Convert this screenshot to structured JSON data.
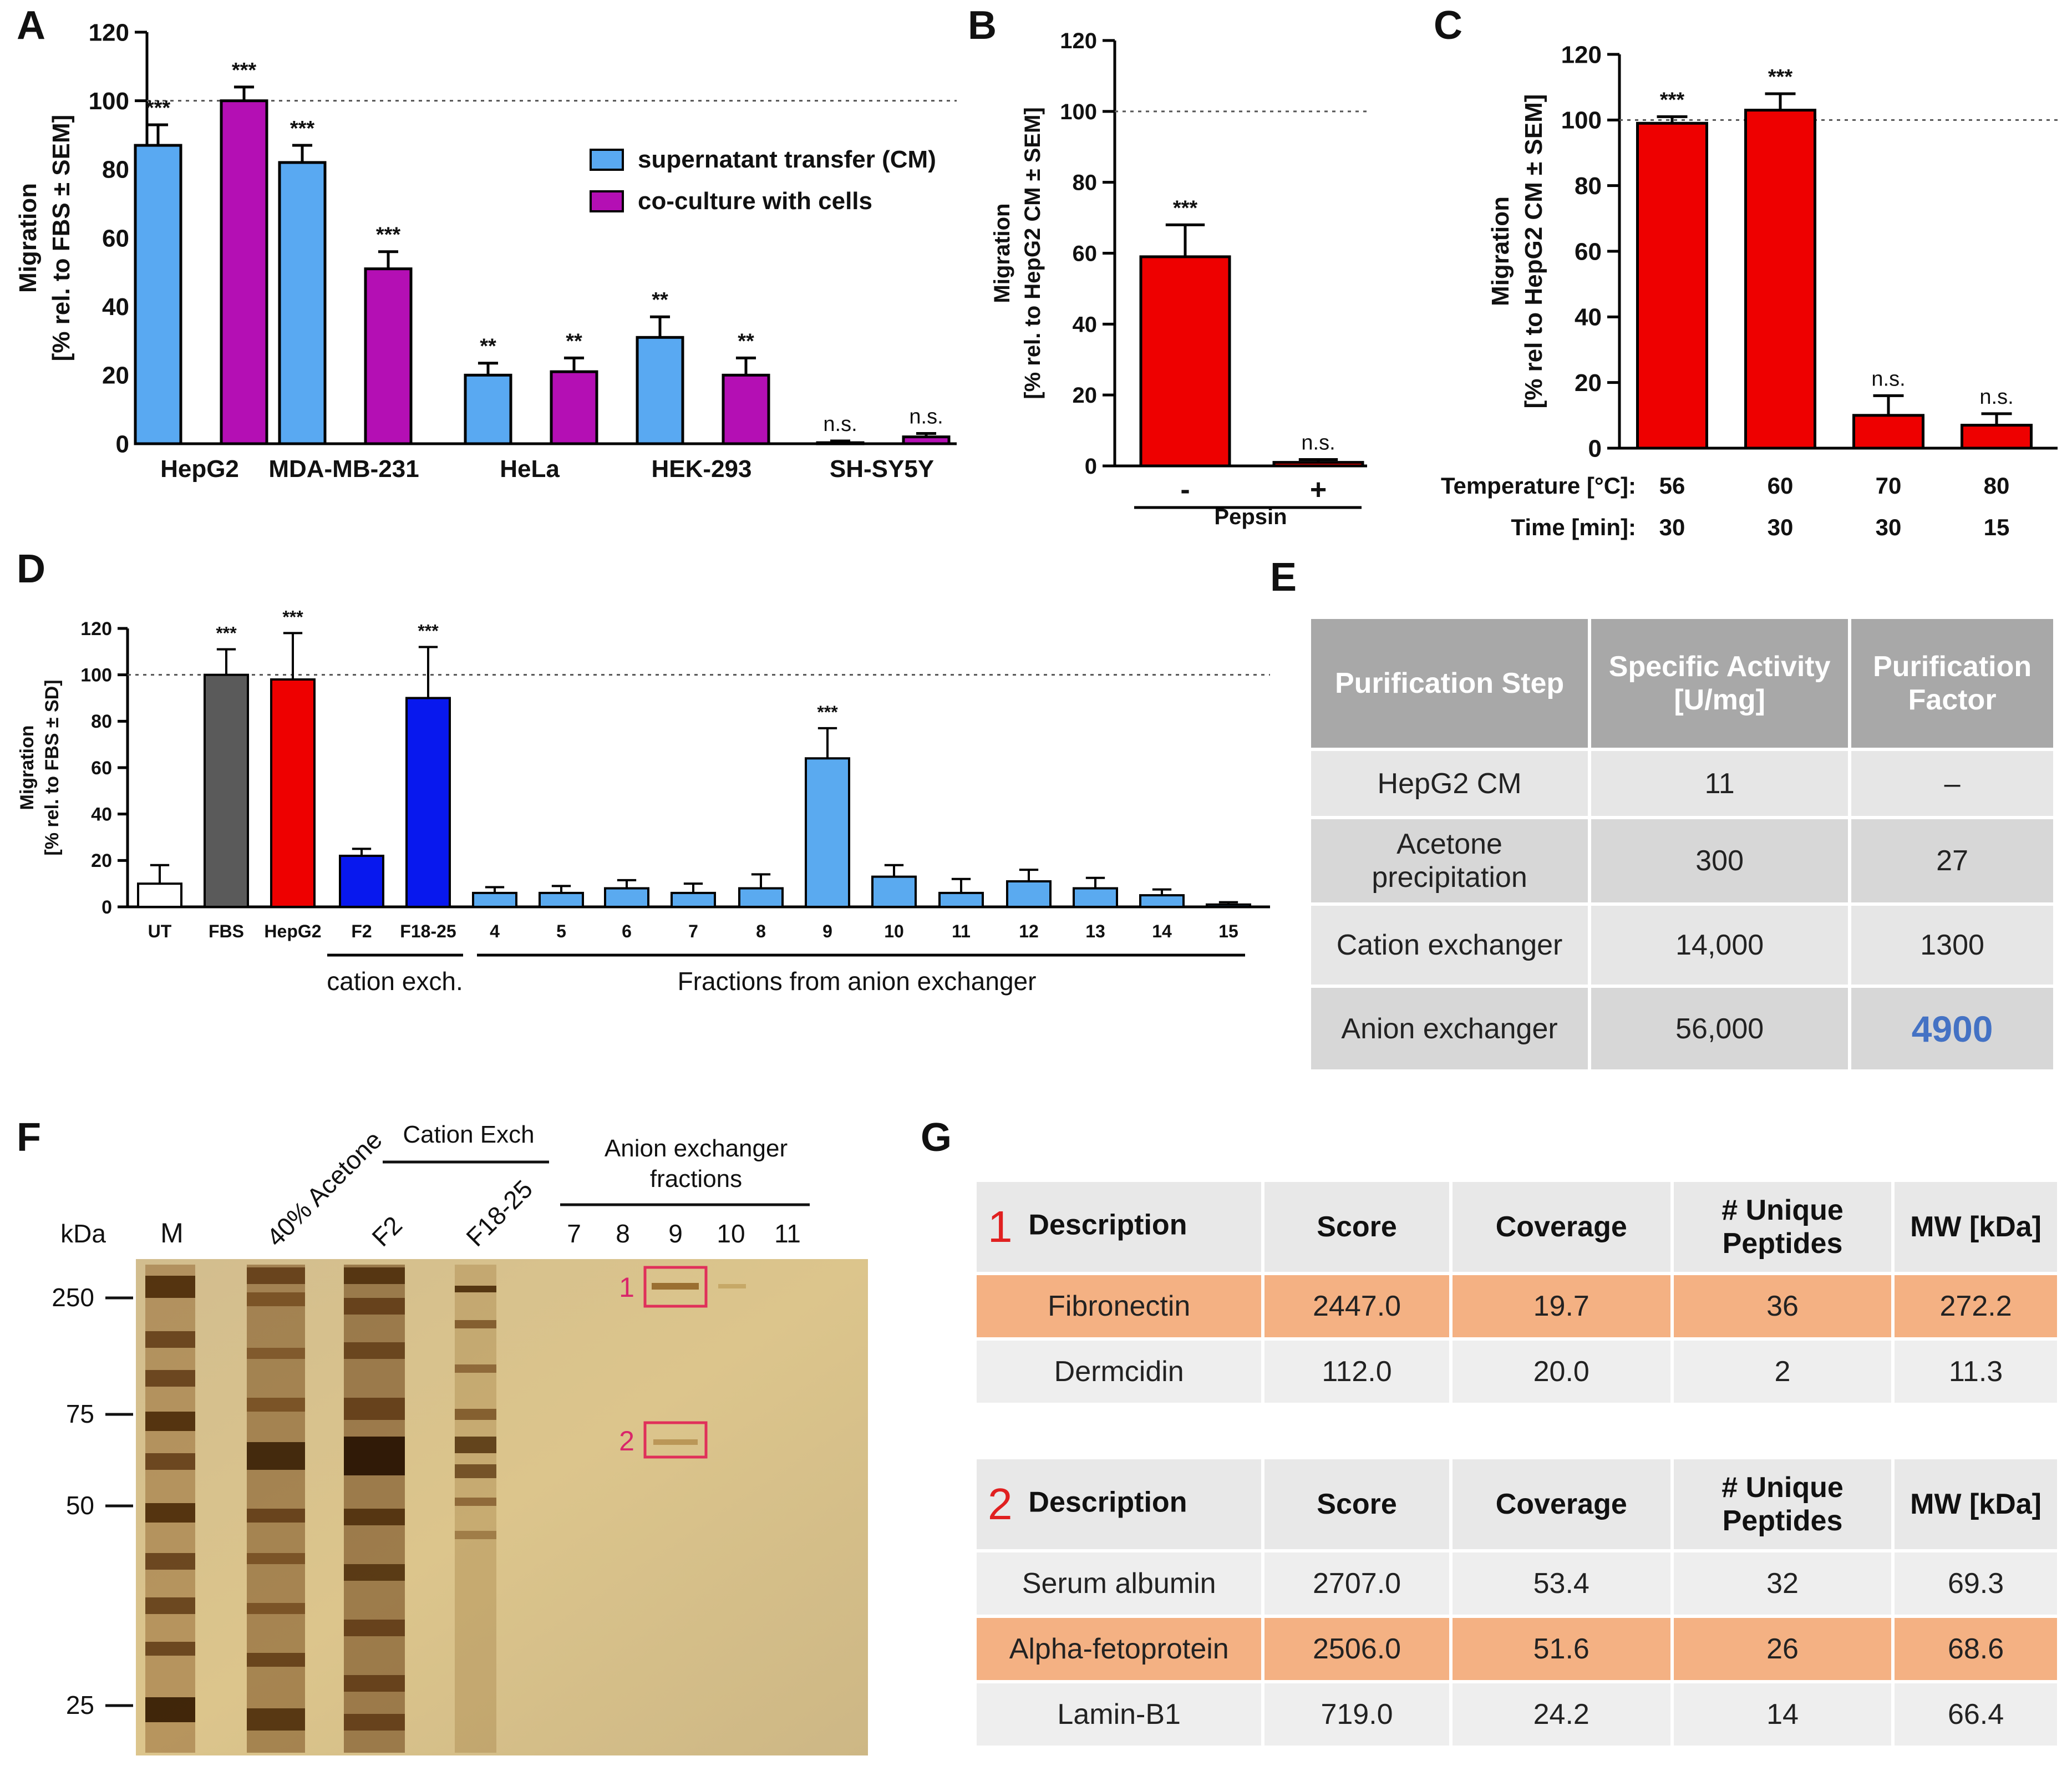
{
  "panels": {
    "A": "A",
    "B": "B",
    "C": "C",
    "D": "D",
    "E": "E",
    "F": "F",
    "G": "G"
  },
  "colors": {
    "cm_blue": "#59a9f2",
    "cells_purple": "#b40fb4",
    "red": "#ee0000",
    "dark_grey": "#5a5a5a",
    "blue": "#0818ee",
    "light_blue": "#5aaaf0",
    "table_grey": "#a8a8a8",
    "highlight": "#f4b183",
    "box_red": "#e0305a"
  },
  "chart_data": [
    {
      "type": "bar",
      "id": "A",
      "title": "",
      "ylabel_line1": "Migration",
      "ylabel_line2": "[% rel. to FBS ± SEM]",
      "ylim": [
        0,
        120
      ],
      "yticks": [
        "0",
        "20",
        "40",
        "60",
        "80",
        "100",
        "120"
      ],
      "reference_line": 100,
      "categories": [
        "HepG2",
        "MDA-MB-231",
        "HeLa",
        "HEK-293",
        "SH-SY5Y"
      ],
      "series": [
        {
          "name": "supernatant transfer (CM)",
          "values": [
            87,
            82,
            20,
            31,
            0.3
          ],
          "errors": [
            6,
            5,
            3.5,
            6,
            0.5
          ],
          "sig": [
            "***",
            "***",
            "**",
            "**",
            "n.s."
          ]
        },
        {
          "name": "co-culture with cells",
          "values": [
            100,
            51,
            21,
            20,
            2
          ],
          "errors": [
            4,
            5,
            4,
            5,
            1
          ],
          "sig": [
            "***",
            "***",
            "**",
            "**",
            "n.s."
          ]
        }
      ]
    },
    {
      "type": "bar",
      "id": "B",
      "ylabel_line1": "Migration",
      "ylabel_line2": "[% rel. to HepG2 CM ± SEM]",
      "ylim": [
        0,
        120
      ],
      "yticks": [
        "0",
        "20",
        "40",
        "60",
        "80",
        "100",
        "120"
      ],
      "reference_line": 100,
      "categories": [
        "-",
        "+"
      ],
      "xlabel": "Pepsin",
      "values": [
        59,
        1
      ],
      "errors": [
        9,
        0.8
      ],
      "sig": [
        "***",
        "n.s."
      ]
    },
    {
      "type": "bar",
      "id": "C",
      "ylabel_line1": "Migration",
      "ylabel_line2": "[% rel to HepG2 CM ± SEM]",
      "ylim": [
        0,
        120
      ],
      "yticks": [
        "0",
        "20",
        "40",
        "60",
        "80",
        "100",
        "120"
      ],
      "reference_line": 100,
      "row1_label": "Temperature [°C]:",
      "row2_label": "Time [min]:",
      "temperatures": [
        "56",
        "60",
        "70",
        "80"
      ],
      "times": [
        "30",
        "30",
        "30",
        "15"
      ],
      "values": [
        99,
        103,
        10,
        7
      ],
      "errors": [
        2,
        5,
        6,
        3.5
      ],
      "sig": [
        "***",
        "***",
        "n.s.",
        "n.s."
      ]
    },
    {
      "type": "bar",
      "id": "D",
      "ylabel_line1": "Migration",
      "ylabel_line2": "[% rel. to FBS ± SD]",
      "ylim": [
        0,
        120
      ],
      "yticks": [
        "0",
        "20",
        "40",
        "60",
        "80",
        "100",
        "120"
      ],
      "reference_line": 100,
      "categories": [
        "UT",
        "FBS",
        "HepG2",
        "F2",
        "F18-25",
        "4",
        "5",
        "6",
        "7",
        "8",
        "9",
        "10",
        "11",
        "12",
        "13",
        "14",
        "15"
      ],
      "values": [
        10,
        100,
        98,
        22,
        90,
        6,
        6,
        8,
        6,
        8,
        64,
        13,
        6,
        11,
        8,
        5,
        1
      ],
      "errors": [
        8,
        11,
        20,
        3,
        22,
        2.5,
        3,
        3.5,
        4,
        6,
        13,
        5,
        6,
        5,
        4.5,
        2.5,
        1
      ],
      "sig": [
        "",
        "***",
        "***",
        "",
        "***",
        "",
        "",
        "",
        "",
        "",
        "***",
        "",
        "",
        "",
        "",
        "",
        ""
      ],
      "group1_label": "cation exch.",
      "group2_label": "Fractions from anion exchanger"
    }
  ],
  "tableE": {
    "headers": [
      "Purification Step",
      "Specific Activity [U/mg]",
      "Purification Factor"
    ],
    "rows": [
      [
        "HepG2 CM",
        "11",
        "–"
      ],
      [
        "Acetone precipitation",
        "300",
        "27"
      ],
      [
        "Cation exchanger",
        "14,000",
        "1300"
      ],
      [
        "Anion exchanger",
        "56,000",
        "4900"
      ]
    ]
  },
  "gel": {
    "kda_label": "kDa",
    "marker_label": "M",
    "markers": [
      "250",
      "75",
      "50",
      "25"
    ],
    "lane_labels": [
      "40% Acetone",
      "F2",
      "F18-25"
    ],
    "cation_header": "Cation Exch",
    "anion_header_line1": "Anion exchanger",
    "anion_header_line2": "fractions",
    "anion_fractions": [
      "7",
      "8",
      "9",
      "10",
      "11"
    ],
    "box_labels": [
      "1",
      "2"
    ]
  },
  "tableG1": {
    "number": "1",
    "headers": [
      "Description",
      "Score",
      "Coverage",
      "# Unique Peptides",
      "MW [kDa]"
    ],
    "rows": [
      [
        "Fibronectin",
        "2447.0",
        "19.7",
        "36",
        "272.2"
      ],
      [
        "Dermcidin",
        "112.0",
        "20.0",
        "2",
        "11.3"
      ]
    ]
  },
  "tableG2": {
    "number": "2",
    "headers": [
      "Description",
      "Score",
      "Coverage",
      "# Unique Peptides",
      "MW [kDa]"
    ],
    "rows": [
      [
        "Serum albumin",
        "2707.0",
        "53.4",
        "32",
        "69.3"
      ],
      [
        "Alpha-fetoprotein",
        "2506.0",
        "51.6",
        "26",
        "68.6"
      ],
      [
        "Lamin-B1",
        "719.0",
        "24.2",
        "14",
        "66.4"
      ]
    ]
  }
}
